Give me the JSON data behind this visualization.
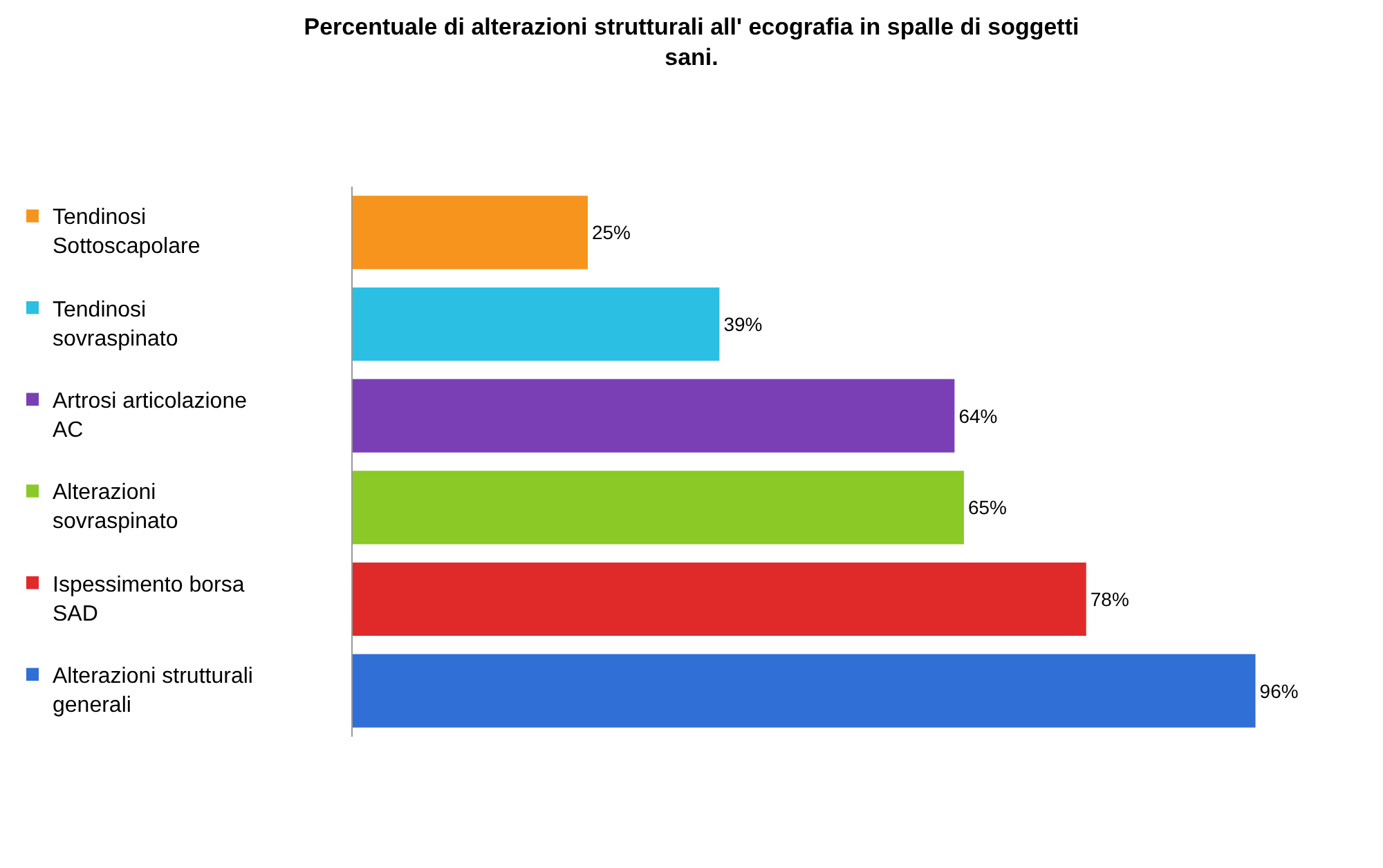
{
  "chart_data": {
    "type": "bar",
    "orientation": "horizontal",
    "title": "Percentuale di alterazioni strutturali all' ecografia in spalle di soggetti\nsani.",
    "categories": [
      "Tendinosi\nSottoscapolare",
      "Tendinosi\nsovraspinato",
      "Artrosi articolazione\nAC",
      "Alterazioni\nsovraspinato",
      "Ispessimento borsa\nSAD",
      "Alterazioni strutturali\ngenerali"
    ],
    "values": [
      25,
      39,
      64,
      65,
      78,
      96
    ],
    "colors": [
      "#f7941d",
      "#2bbfe3",
      "#7a3fb5",
      "#8ac926",
      "#e02a2a",
      "#2f6fd6"
    ],
    "value_labels": [
      "25%",
      "39%",
      "64%",
      "65%",
      "78%",
      "96%"
    ],
    "tick_labels": "y"
  }
}
